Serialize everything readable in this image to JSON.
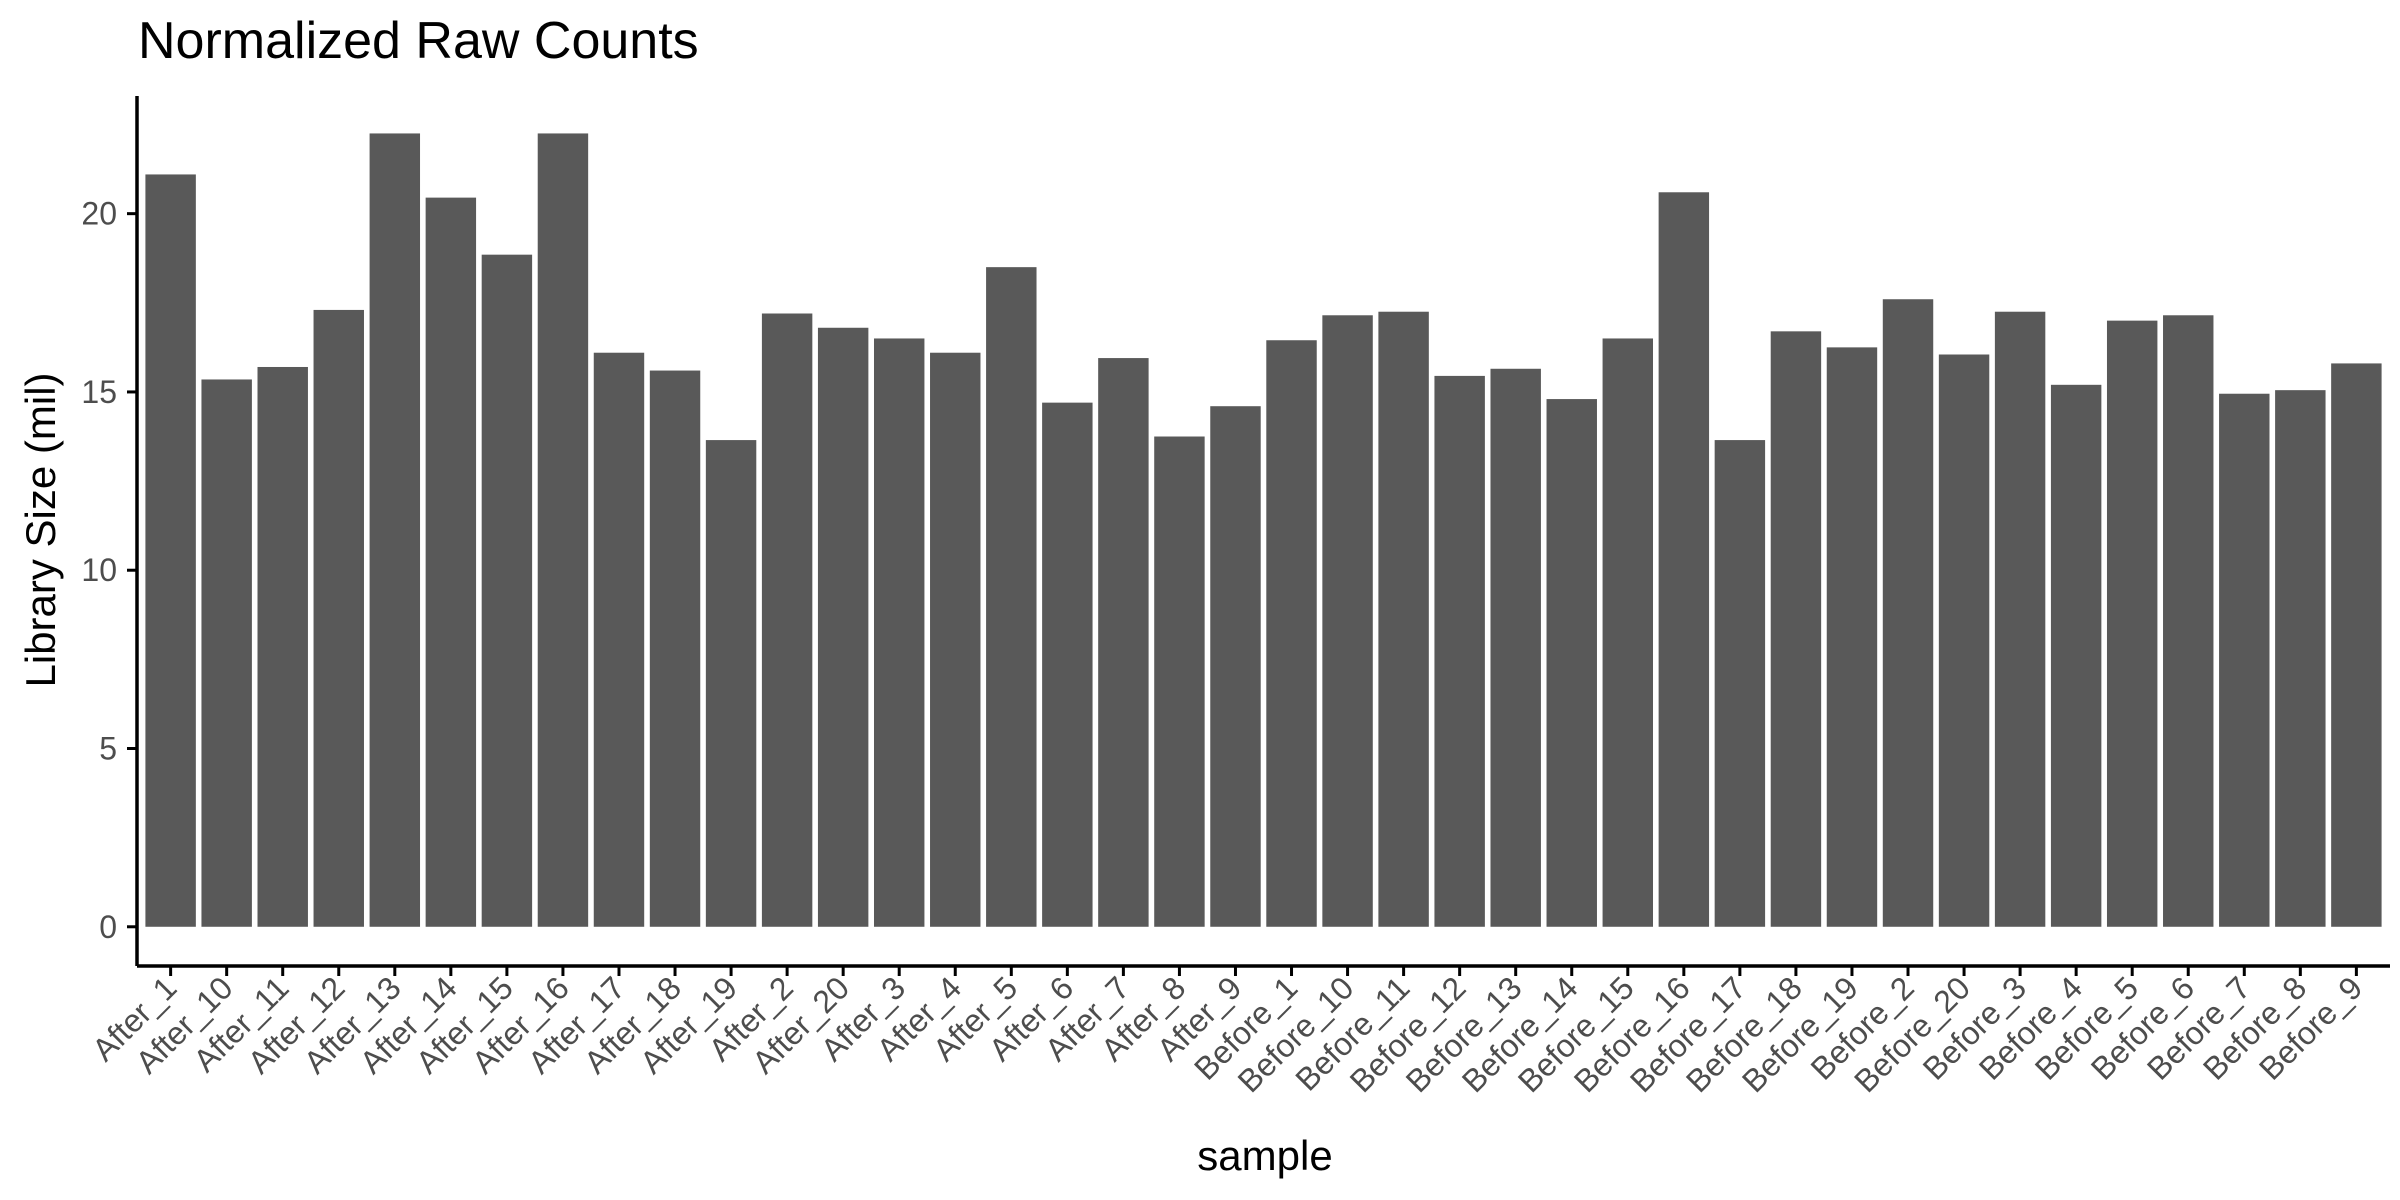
{
  "chart_data": {
    "type": "bar",
    "title": "Normalized Raw Counts",
    "xlabel": "sample",
    "ylabel": "Library Size (mil)",
    "ylim": [
      -1.1,
      23.3
    ],
    "yticks": [
      0,
      5,
      10,
      15,
      20
    ],
    "grid": false,
    "legend": "none",
    "bar_color": "#595959",
    "categories": [
      "After_1",
      "After_10",
      "After_11",
      "After_12",
      "After_13",
      "After_14",
      "After_15",
      "After_16",
      "After_17",
      "After_18",
      "After_19",
      "After_2",
      "After_20",
      "After_3",
      "After_4",
      "After_5",
      "After_6",
      "After_7",
      "After_8",
      "After_9",
      "Before_1",
      "Before_10",
      "Before_11",
      "Before_12",
      "Before_13",
      "Before_14",
      "Before_15",
      "Before_16",
      "Before_17",
      "Before_18",
      "Before_19",
      "Before_2",
      "Before_20",
      "Before_3",
      "Before_4",
      "Before_5",
      "Before_6",
      "Before_7",
      "Before_8",
      "Before_9"
    ],
    "values": [
      21.1,
      15.35,
      15.7,
      17.3,
      22.25,
      20.45,
      18.85,
      22.25,
      16.1,
      15.6,
      13.65,
      17.2,
      16.8,
      16.5,
      16.1,
      18.5,
      14.7,
      15.95,
      13.75,
      14.6,
      16.45,
      17.15,
      17.25,
      15.45,
      15.65,
      14.8,
      16.5,
      20.6,
      13.65,
      16.7,
      16.25,
      17.6,
      16.05,
      17.25,
      15.2,
      17.0,
      17.15,
      14.95,
      15.05,
      15.8
    ]
  }
}
